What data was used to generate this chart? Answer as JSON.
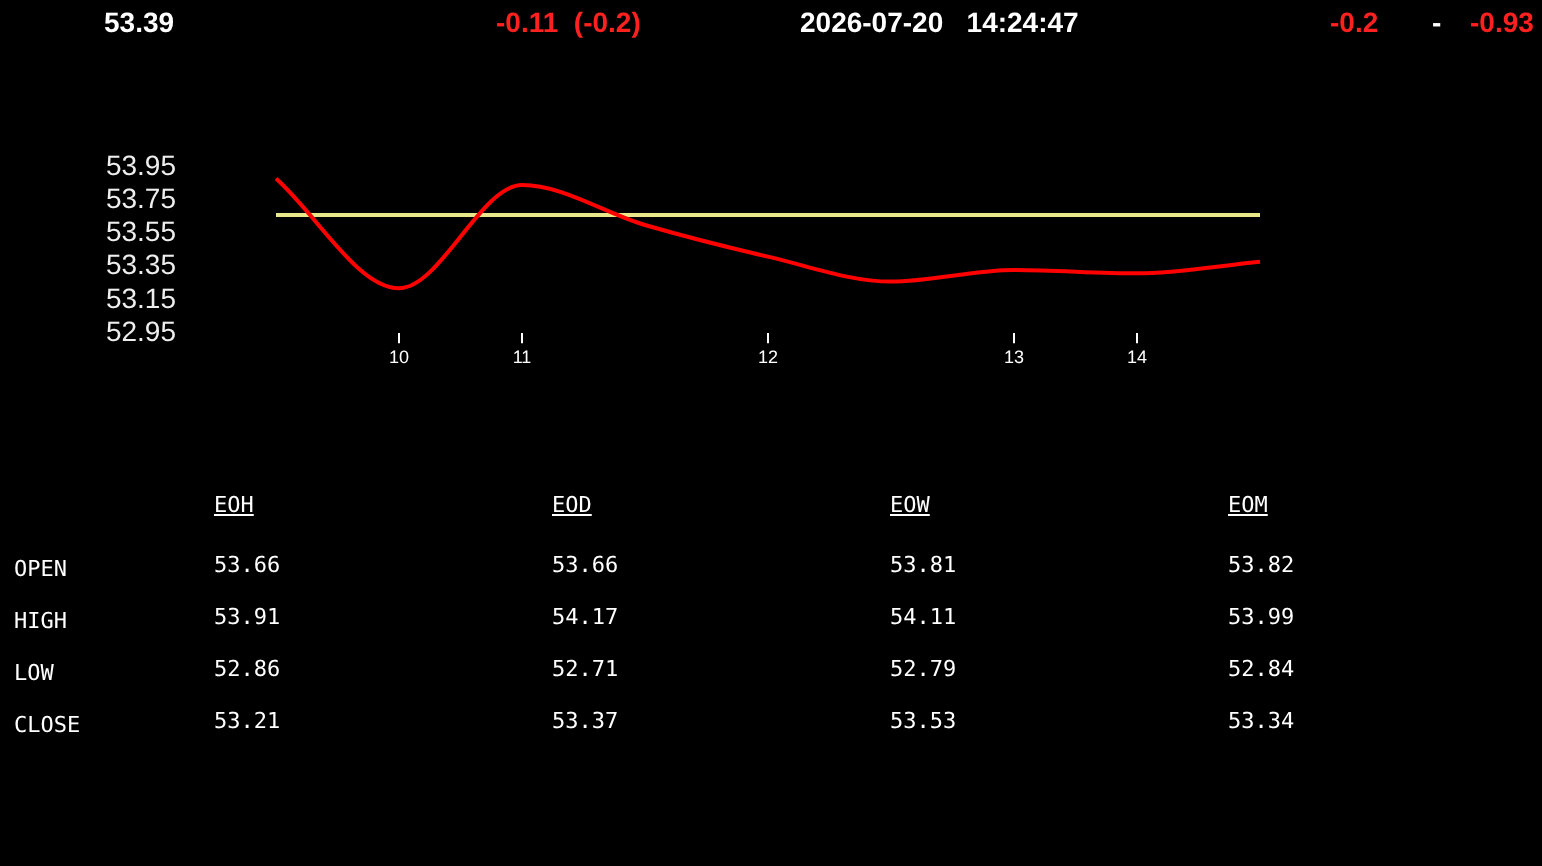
{
  "chart_data": [
    {
      "type": "line",
      "annotations": [
        "53.39",
        "-0.11  (-0.2)",
        "2026-07-20   14:24:47",
        "-0.2",
        "-",
        "-0.93"
      ],
      "categories": [
        null,
        "10",
        "11",
        null,
        "12",
        null,
        "13",
        "14",
        null
      ],
      "series": [
        {
          "color": "#ff0000",
          "values": [
            53.88,
            53.22,
            53.84,
            53.6,
            53.41,
            53.26,
            53.33,
            53.31,
            53.38
          ]
        }
      ],
      "ylim": [
        52.95,
        53.95
      ],
      "yticks": [
        52.95,
        53.15,
        53.35,
        53.55,
        53.75,
        53.95
      ],
      "grid": false,
      "legend": false,
      "marker": "none",
      "line_style": "solid",
      "ref_lines": [
        {
          "axis": "y",
          "value": 53.66,
          "color": "#e8e88a"
        }
      ]
    },
    {
      "type": "other",
      "annotations": [
        "EOH",
        "EOD",
        "EOW",
        "EOM",
        "OPEN",
        "53.66",
        "53.66",
        "53.81",
        "53.82",
        "HIGH",
        "53.91",
        "54.17",
        "54.11",
        "53.99",
        "LOW",
        "52.86",
        "52.71",
        "52.79",
        "52.84",
        "CLOSE",
        "53.21",
        "53.37",
        "53.53",
        "53.34"
      ]
    }
  ]
}
